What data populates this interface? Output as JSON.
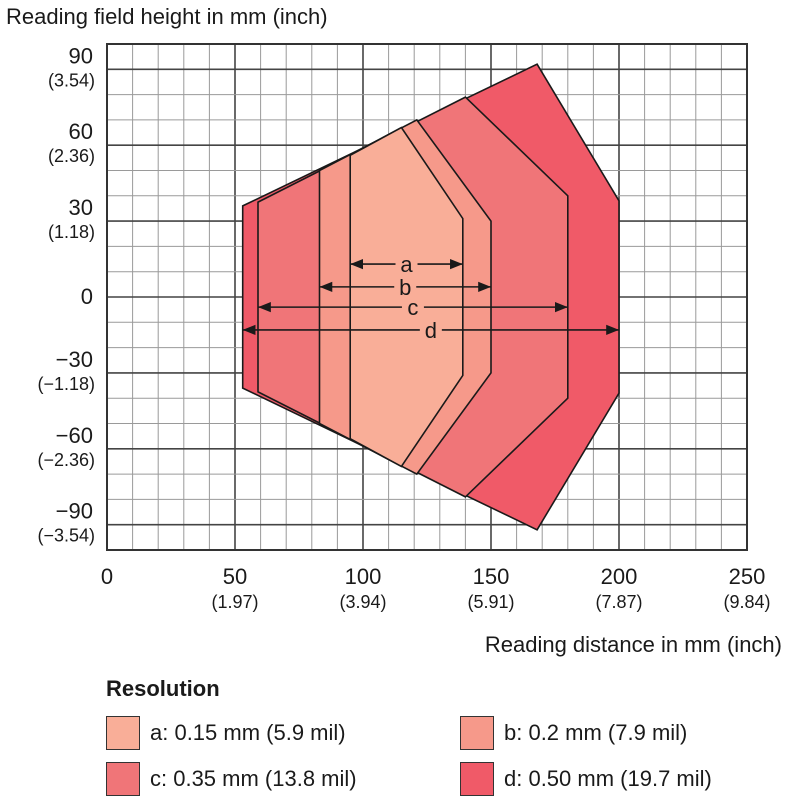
{
  "chart_data": {
    "type": "area",
    "ylabel": "Reading field height in mm (inch)",
    "xlabel": "Reading distance in mm (inch)",
    "xlim": [
      0,
      250
    ],
    "ylim": [
      -100,
      100
    ],
    "grid": true,
    "x_ticks": [
      {
        "value": 0,
        "label": "0",
        "sub": ""
      },
      {
        "value": 50,
        "label": "50",
        "sub": "(1.97)"
      },
      {
        "value": 100,
        "label": "100",
        "sub": "(3.94)"
      },
      {
        "value": 150,
        "label": "150",
        "sub": "(5.91)"
      },
      {
        "value": 200,
        "label": "200",
        "sub": "(7.87)"
      },
      {
        "value": 250,
        "label": "250",
        "sub": "(9.84)"
      }
    ],
    "y_ticks": [
      {
        "value": 90,
        "label": "90",
        "sub": "(3.54)"
      },
      {
        "value": 60,
        "label": "60",
        "sub": "(2.36)"
      },
      {
        "value": 30,
        "label": "30",
        "sub": "(1.18)"
      },
      {
        "value": 0,
        "label": "0",
        "sub": ""
      },
      {
        "value": -30,
        "label": "−30",
        "sub": "(−1.18)"
      },
      {
        "value": -60,
        "label": "−60",
        "sub": "(−2.36)"
      },
      {
        "value": -90,
        "label": "−90",
        "sub": "(−3.54)"
      }
    ],
    "zones": [
      {
        "id": "d",
        "color": "#f05a68",
        "polygon": [
          [
            53,
            36
          ],
          [
            168,
            92
          ],
          [
            200,
            38
          ],
          [
            200,
            -38
          ],
          [
            168,
            -92
          ],
          [
            53,
            -36
          ]
        ],
        "range": [
          53,
          200
        ],
        "arrow_y": -13
      },
      {
        "id": "c",
        "color": "#f07578",
        "polygon": [
          [
            59,
            37.5
          ],
          [
            140,
            79
          ],
          [
            180,
            40
          ],
          [
            180,
            -40
          ],
          [
            140,
            -79
          ],
          [
            59,
            -37.5
          ]
        ],
        "range": [
          59,
          180
        ],
        "arrow_y": -4
      },
      {
        "id": "b",
        "color": "#f6998a",
        "polygon": [
          [
            83,
            50
          ],
          [
            121,
            70
          ],
          [
            150,
            30
          ],
          [
            150,
            -30
          ],
          [
            121,
            -70
          ],
          [
            83,
            -50
          ]
        ],
        "range": [
          83,
          150
        ],
        "arrow_y": 4
      },
      {
        "id": "a",
        "color": "#f9ae98",
        "polygon": [
          [
            95,
            56
          ],
          [
            115,
            67
          ],
          [
            139,
            31
          ],
          [
            139,
            -31
          ],
          [
            115,
            -67
          ],
          [
            95,
            -56
          ]
        ],
        "range": [
          95,
          139
        ],
        "arrow_y": 13
      }
    ]
  },
  "legend": {
    "title": "Resolution",
    "items": [
      {
        "label": "a: 0.15 mm (5.9 mil)",
        "color": "#f9ae98"
      },
      {
        "label": "b: 0.2 mm (7.9 mil)",
        "color": "#f6998a"
      },
      {
        "label": "c: 0.35 mm (13.8 mil)",
        "color": "#f07578"
      },
      {
        "label": "d: 0.50 mm (19.7 mil)",
        "color": "#f05a68"
      }
    ]
  }
}
